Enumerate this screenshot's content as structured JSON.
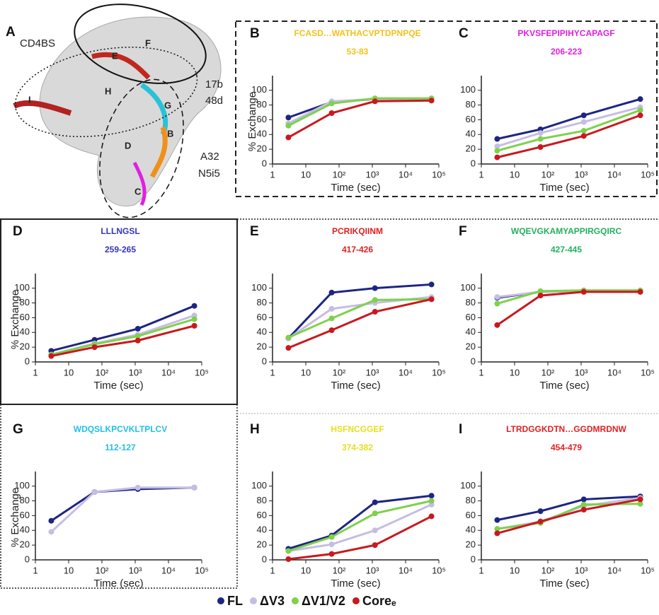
{
  "structure_panel": {
    "letter": "A",
    "labels": [
      "CD4BS",
      "17b",
      "48d",
      "A32",
      "N5i5",
      "E",
      "F",
      "H",
      "G",
      "B",
      "I",
      "D",
      "C"
    ]
  },
  "legend": [
    {
      "name": "FL",
      "color": "#1c2583"
    },
    {
      "name": "ΔV3",
      "color": "#c6bde3"
    },
    {
      "name": "ΔV1/V2",
      "color": "#7ed14b"
    },
    {
      "name": "Coreₑ",
      "color": "#c8191e"
    }
  ],
  "chart_data": [
    {
      "type": "line",
      "letter": "B",
      "title": "FCASD…WATHACVPTDPNPQE",
      "subtitle": "53-83",
      "title_color": "#f2c21a",
      "ylabel": "% Exchange",
      "xlabel": "Time (sec)",
      "xlog": true,
      "xlim": [
        1,
        100000
      ],
      "xticks": [
        1,
        10,
        {
          "value": 100,
          "label": "10²"
        },
        {
          "value": 1000,
          "label": "10³"
        },
        {
          "value": 10000,
          "label": "10⁴"
        },
        {
          "value": 100000,
          "label": "10⁵"
        }
      ],
      "ylim": [
        0,
        115
      ],
      "yticks": [
        0,
        20,
        40,
        60,
        80,
        100
      ],
      "x": [
        3,
        60,
        1200,
        60000
      ],
      "series": [
        {
          "values": [
            63,
            84,
            88,
            88
          ]
        },
        {
          "values": [
            55,
            85,
            88,
            88
          ]
        },
        {
          "values": [
            52,
            82,
            89,
            89
          ]
        },
        {
          "values": [
            36,
            69,
            85,
            86
          ]
        }
      ]
    },
    {
      "type": "line",
      "letter": "C",
      "title": "PKVSFEPIPIHYCAPAGF",
      "subtitle": "206-223",
      "title_color": "#e020e0",
      "xlabel": "Time (sec)",
      "xlog": true,
      "xlim": [
        1,
        100000
      ],
      "xticks": [
        1,
        10,
        {
          "value": 100,
          "label": "10²"
        },
        {
          "value": 1000,
          "label": "10³"
        },
        {
          "value": 10000,
          "label": "10⁴"
        },
        {
          "value": 100000,
          "label": "10⁵"
        }
      ],
      "ylim": [
        0,
        115
      ],
      "yticks": [
        0,
        20,
        40,
        60,
        80,
        100
      ],
      "x": [
        3,
        60,
        1200,
        60000
      ],
      "series": [
        {
          "values": [
            34,
            47,
            66,
            88
          ]
        },
        {
          "values": [
            24,
            42,
            57,
            77
          ]
        },
        {
          "values": [
            18,
            34,
            45,
            73
          ]
        },
        {
          "values": [
            9,
            23,
            38,
            66
          ]
        }
      ]
    },
    {
      "type": "line",
      "letter": "D",
      "title": "LLLNGSL",
      "subtitle": "259-265",
      "title_color": "#3434c0",
      "ylabel": "% Exchange",
      "xlabel": "Time (sec)",
      "xlog": true,
      "xlim": [
        1,
        100000
      ],
      "xticks": [
        1,
        10,
        {
          "value": 100,
          "label": "10²"
        },
        {
          "value": 1000,
          "label": "10³"
        },
        {
          "value": 10000,
          "label": "10⁴"
        },
        {
          "value": 100000,
          "label": "10⁵"
        }
      ],
      "ylim": [
        0,
        115
      ],
      "yticks": [
        0,
        20,
        40,
        60,
        80,
        100
      ],
      "x": [
        3,
        60,
        1200,
        60000
      ],
      "series": [
        {
          "values": [
            15,
            30,
            45,
            76
          ]
        },
        {
          "values": [
            10,
            25,
            37,
            63
          ]
        },
        {
          "values": [
            10,
            24,
            35,
            58
          ]
        },
        {
          "values": [
            8,
            20,
            29,
            49
          ]
        }
      ]
    },
    {
      "type": "line",
      "letter": "E",
      "title": "PCRIKQIINM",
      "subtitle": "417-426",
      "title_color": "#e02020",
      "xlabel": "Time (sec)",
      "xlog": true,
      "xlim": [
        1,
        100000
      ],
      "xticks": [
        1,
        10,
        {
          "value": 100,
          "label": "10²"
        },
        {
          "value": 1000,
          "label": "10³"
        },
        {
          "value": 10000,
          "label": "10⁴"
        },
        {
          "value": 100000,
          "label": "10⁵"
        }
      ],
      "ylim": [
        0,
        115
      ],
      "yticks": [
        0,
        20,
        40,
        60,
        80,
        100
      ],
      "x": [
        3,
        60,
        1200,
        60000
      ],
      "series": [
        {
          "values": [
            32,
            94,
            100,
            105
          ]
        },
        {
          "values": [
            32,
            72,
            80,
            88
          ]
        },
        {
          "values": [
            33,
            59,
            84,
            85
          ]
        },
        {
          "values": [
            19,
            43,
            68,
            85
          ]
        }
      ]
    },
    {
      "type": "line",
      "letter": "F",
      "title": "WQEVGKAMYAPPIRGQIRC",
      "subtitle": "427-445",
      "title_color": "#22b060",
      "xlabel": "Time (sec)",
      "xlog": true,
      "xlim": [
        1,
        100000
      ],
      "xticks": [
        1,
        10,
        {
          "value": 100,
          "label": "10²"
        },
        {
          "value": 1000,
          "label": "10³"
        },
        {
          "value": 10000,
          "label": "10⁴"
        },
        {
          "value": 100000,
          "label": "10⁵"
        }
      ],
      "ylim": [
        0,
        115
      ],
      "yticks": [
        0,
        20,
        40,
        60,
        80,
        100
      ],
      "x": [
        3,
        60,
        1200,
        60000
      ],
      "series": [
        {
          "values": [
            87,
            95,
            96,
            96
          ]
        },
        {
          "values": [
            88,
            95,
            96,
            96
          ]
        },
        {
          "values": [
            79,
            96,
            97,
            97
          ]
        },
        {
          "values": [
            50,
            90,
            95,
            95
          ]
        }
      ]
    },
    {
      "type": "line",
      "letter": "G",
      "title": "WDQSLKPCVKLTPLCV",
      "subtitle": "112-127",
      "title_color": "#22c0e8",
      "ylabel": "% Exchange",
      "xlabel": "Time (sec)",
      "xlog": true,
      "xlim": [
        1,
        100000
      ],
      "xticks": [
        1,
        10,
        {
          "value": 100,
          "label": "10²"
        },
        {
          "value": 1000,
          "label": "10³"
        },
        {
          "value": 10000,
          "label": "10⁴"
        },
        {
          "value": 100000,
          "label": "10⁵"
        }
      ],
      "ylim": [
        0,
        115
      ],
      "yticks": [
        0,
        20,
        40,
        60,
        80,
        100
      ],
      "x": [
        3,
        60,
        1200,
        60000
      ],
      "series": [
        {
          "values": [
            53,
            92,
            96,
            98
          ]
        },
        {
          "values": [
            38,
            92,
            98,
            98
          ]
        }
      ]
    },
    {
      "type": "line",
      "letter": "H",
      "title": "HSFNCGGEF",
      "subtitle": "374-382",
      "title_color": "#e4e020",
      "xlabel": "Time (sec)",
      "xlog": true,
      "xlim": [
        1,
        100000
      ],
      "xticks": [
        1,
        10,
        {
          "value": 100,
          "label": "10²"
        },
        {
          "value": 1000,
          "label": "10³"
        },
        {
          "value": 10000,
          "label": "10⁴"
        },
        {
          "value": 100000,
          "label": "10⁵"
        }
      ],
      "ylim": [
        0,
        115
      ],
      "yticks": [
        0,
        20,
        40,
        60,
        80,
        100
      ],
      "x": [
        3,
        60,
        1200,
        60000
      ],
      "series": [
        {
          "values": [
            15,
            33,
            78,
            87
          ]
        },
        {
          "values": [
            12,
            21,
            40,
            75
          ]
        },
        {
          "values": [
            12,
            31,
            63,
            80
          ]
        },
        {
          "values": [
            1,
            8,
            20,
            59
          ]
        }
      ]
    },
    {
      "type": "line",
      "letter": "I",
      "title": "LTRDGGKDTN…GGDMRDNW",
      "subtitle": "454-479",
      "title_color": "#e02020",
      "xlabel": "Time (sec)",
      "xlog": true,
      "xlim": [
        1,
        100000
      ],
      "xticks": [
        1,
        10,
        {
          "value": 100,
          "label": "10²"
        },
        {
          "value": 1000,
          "label": "10³"
        },
        {
          "value": 10000,
          "label": "10⁴"
        },
        {
          "value": 100000,
          "label": "10⁵"
        }
      ],
      "ylim": [
        0,
        115
      ],
      "yticks": [
        0,
        20,
        40,
        60,
        80,
        100
      ],
      "x": [
        3,
        60,
        1200,
        60000
      ],
      "series": [
        {
          "values": [
            54,
            66,
            82,
            86
          ]
        },
        {
          "values": [
            42,
            52,
            73,
            84
          ]
        },
        {
          "values": [
            42,
            50,
            75,
            76
          ]
        },
        {
          "values": [
            36,
            52,
            68,
            82
          ]
        }
      ]
    }
  ]
}
